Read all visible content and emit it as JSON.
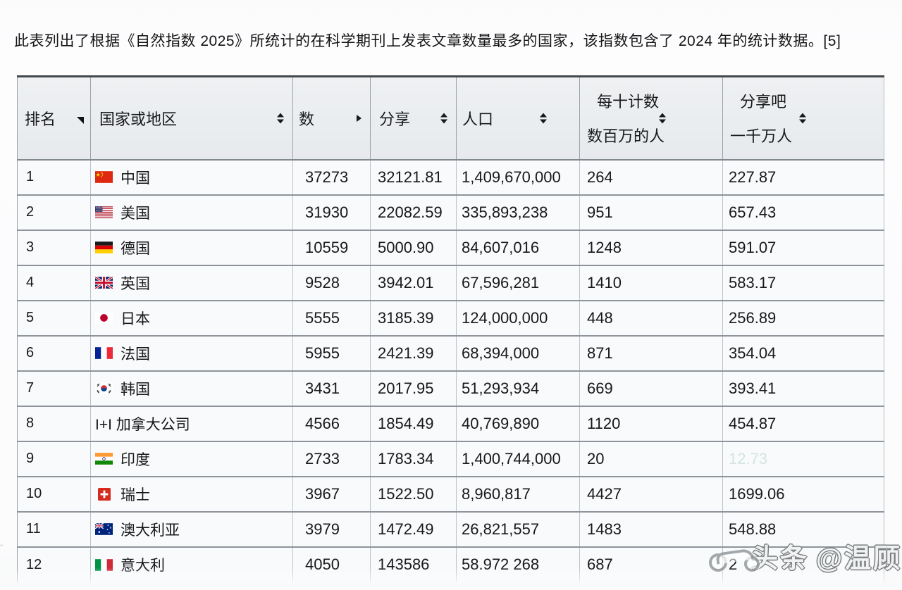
{
  "page": {
    "caption": "此表列出了根据《自然指数 2025》所统计的在科学期刊上发表文章数量最多的国家，该指数包含了 2024 年的统计数据。[5]"
  },
  "colors": {
    "header_bg": "#e9ecef",
    "row_bg": "#f8fafb",
    "row_border": "#8e949a",
    "table_top_border": "#43484c",
    "faint_value": "#d3e4e1"
  },
  "table": {
    "columns": [
      {
        "label": "排名",
        "sort": "corner-asc"
      },
      {
        "label": "国家或地区",
        "sort": "both"
      },
      {
        "label": "数",
        "sort": "right"
      },
      {
        "label": "分享",
        "sort": "both"
      },
      {
        "label": "人口",
        "sort": "both"
      },
      {
        "label": "每十计数",
        "sublabel": "数百万的人",
        "sort": "both"
      },
      {
        "label": "分享吧",
        "sublabel": "一千万人",
        "sort": "both"
      }
    ],
    "rows": [
      {
        "rank": "1",
        "flag": "cn",
        "country": "中国",
        "count": "37273",
        "share": "32121.81",
        "population": "1,409,670,000",
        "count_per": "264",
        "share_per": "227.87"
      },
      {
        "rank": "2",
        "flag": "us",
        "country": "美国",
        "count": "31930",
        "share": "22082.59",
        "population": "335,893,238",
        "count_per": "951",
        "share_per": "657.43"
      },
      {
        "rank": "3",
        "flag": "de",
        "country": "德国",
        "count": "10559",
        "share": "5000.90",
        "population": "84,607,016",
        "count_per": "1248",
        "share_per": "591.07"
      },
      {
        "rank": "4",
        "flag": "gb",
        "country": "英国",
        "count": "9528",
        "share": "3942.01",
        "population": "67,596,281",
        "count_per": "1410",
        "share_per": "583.17"
      },
      {
        "rank": "5",
        "flag": "jp",
        "country": "日本",
        "count": "5555",
        "share": "3185.39",
        "population": "124,000,000",
        "count_per": "448",
        "share_per": "256.89"
      },
      {
        "rank": "6",
        "flag": "fr",
        "country": "法国",
        "count": "5955",
        "share": "2421.39",
        "population": "68,394,000",
        "count_per": "871",
        "share_per": "354.04"
      },
      {
        "rank": "7",
        "flag": "kr",
        "country": "韩国",
        "count": "3431",
        "share": "2017.95",
        "population": "51,293,934",
        "count_per": "669",
        "share_per": "393.41"
      },
      {
        "rank": "8",
        "flag": "none",
        "country": "I+I 加拿大公司",
        "count": "4566",
        "share": "1854.49",
        "population": "40,769,890",
        "count_per": "1120",
        "share_per": "454.87"
      },
      {
        "rank": "9",
        "flag": "in",
        "country": "印度",
        "count": "2733",
        "share": "1783.34",
        "population": "1,400,744,000",
        "count_per": "20",
        "share_per": "12.73",
        "share_per_faint": true
      },
      {
        "rank": "10",
        "flag": "ch",
        "country": "瑞士",
        "count": "3967",
        "share": "1522.50",
        "population": "8,960,817",
        "count_per": "4427",
        "share_per": "1699.06"
      },
      {
        "rank": "11",
        "flag": "au",
        "country": "澳大利亚",
        "count": "3979",
        "share": "1472.49",
        "population": "26,821,557",
        "count_per": "1483",
        "share_per": "548.88"
      },
      {
        "rank": "12",
        "flag": "it",
        "country": "意大利",
        "count": "4050",
        "share": "143586",
        "population": "58.972 268",
        "count_per": "687",
        "share_per": "2",
        "share_per_obscured": true
      }
    ]
  },
  "watermark": {
    "brand": "头条",
    "handle": "@温顾"
  }
}
